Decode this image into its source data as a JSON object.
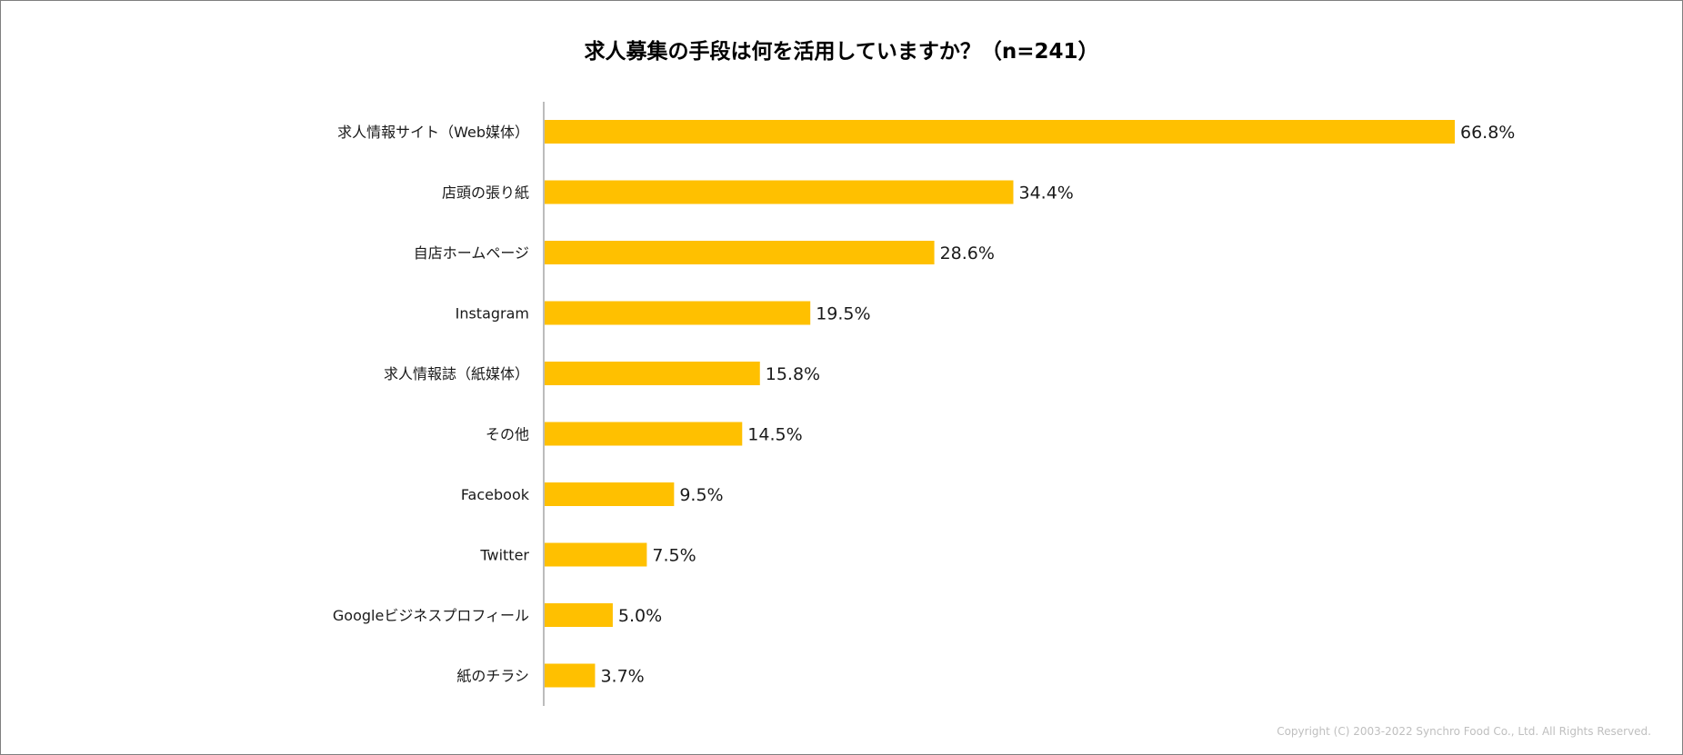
{
  "chart_data": {
    "type": "bar",
    "orientation": "horizontal",
    "title": "求人募集の手段は何を活用していますか？（n=241）",
    "categories": [
      "求人情報サイト（Web媒体）",
      "店頭の張り紙",
      "自店ホームページ",
      "Instagram",
      "求人情報誌（紙媒体）",
      "その他",
      "Facebook",
      "Twitter",
      "Googleビジネスプロフィール",
      "紙のチラシ"
    ],
    "values": [
      66.8,
      34.4,
      28.6,
      19.5,
      15.8,
      14.5,
      9.5,
      7.5,
      5.0,
      3.7
    ],
    "value_labels": [
      "66.8%",
      "34.4%",
      "28.6%",
      "19.5%",
      "15.8%",
      "14.5%",
      "9.5%",
      "7.5%",
      "5.0%",
      "3.7%"
    ],
    "xlim": [
      0,
      66.8
    ],
    "grid": false,
    "legend": "none",
    "bar_color": "#ffc000",
    "axis_color": "#a6a6a6"
  },
  "footer": {
    "copyright": "Copyright (C) 2003-2022   Synchro Food Co., Ltd. All Rights Reserved."
  }
}
